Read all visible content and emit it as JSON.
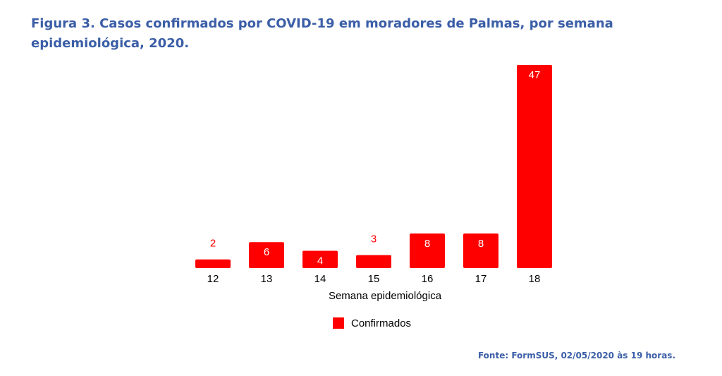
{
  "title": "Figura 3. Casos confirmados por COVID-19 em moradores de Palmas, por semana epidemiológica, 2020.",
  "source": "Fonte: FormSUS, 02/05/2020 às 19 horas.",
  "colors": {
    "bar": "#ff0000",
    "label_inside": "#ffffff",
    "label_outside": "#ff0000",
    "title": "#3b5ea7"
  },
  "chart_data": {
    "type": "bar",
    "categories": [
      "12",
      "13",
      "14",
      "15",
      "16",
      "17",
      "18"
    ],
    "series": [
      {
        "name": "Confirmados",
        "values": [
          2,
          6,
          4,
          3,
          8,
          8,
          47
        ]
      }
    ],
    "title": "",
    "xlabel": "Semana epidemiológica",
    "ylabel": "",
    "ylim": [
      0,
      47
    ],
    "grid": false,
    "legend": "bottom-center",
    "data_labels": true
  }
}
